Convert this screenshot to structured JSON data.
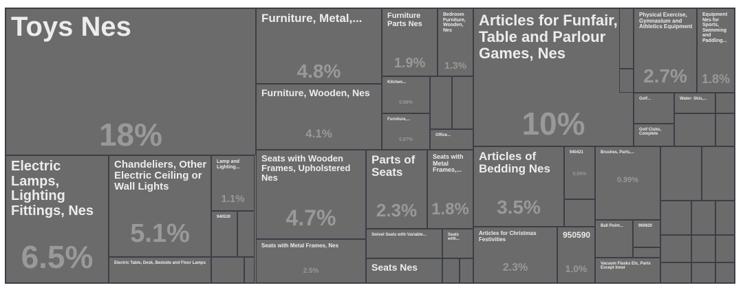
{
  "chart_data": {
    "type": "treemap",
    "colors": {
      "tile": "#6b6b6b",
      "border": "#3a3e46",
      "label": "#ececec",
      "value": "#999999"
    },
    "tiles": [
      {
        "label": "Toys Nes",
        "value": "18%"
      },
      {
        "label": "Electric Lamps, Lighting Fittings, Nes",
        "value": "6.5%"
      },
      {
        "label": "Chandeliers, Other Electric Ceiling or Wall Lights",
        "value": "5.1%"
      },
      {
        "label": "Lamp and Lighting...",
        "value": "1.1%"
      },
      {
        "label": "940530",
        "value": ""
      },
      {
        "label": "Electric Table, Desk, Bedside and Floor Lamps",
        "value": ""
      },
      {
        "label": "Furniture, Metal,...",
        "value": "4.8%"
      },
      {
        "label": "Furniture Parts Nes",
        "value": "1.9%"
      },
      {
        "label": "Bedroom Furniture, Wooden, Nes",
        "value": "1.3%"
      },
      {
        "label": "Furniture, Wooden, Nes",
        "value": "4.1%"
      },
      {
        "label": "Kitchen...",
        "value": "0.88%"
      },
      {
        "label": "Furniture,...",
        "value": "0.87%"
      },
      {
        "label": "Office...",
        "value": ""
      },
      {
        "label": "Seats with Wooden Frames, Upholstered Nes",
        "value": "4.7%"
      },
      {
        "label": "Seats with Metal Frames, Nes",
        "value": "2.5%"
      },
      {
        "label": "Parts of Seats",
        "value": "2.3%"
      },
      {
        "label": "Seats with Metal Frames,...",
        "value": "1.8%"
      },
      {
        "label": "Swivel Seats with Variable...",
        "value": ""
      },
      {
        "label": "Seats with...",
        "value": ""
      },
      {
        "label": "Seats Nes",
        "value": ""
      },
      {
        "label": "Articles for Funfair, Table and Parlour Games, Nes",
        "value": "10%"
      },
      {
        "label": "Physical Exercise, Gymnasium and Athletics Equipment",
        "value": "2.7%"
      },
      {
        "label": "Equipment Nes for Sports, Swimming and Paddling...",
        "value": "1.8%"
      },
      {
        "label": "Golf...",
        "value": ""
      },
      {
        "label": "Water- Skis,...",
        "value": ""
      },
      {
        "label": "Golf Clubs, Complete",
        "value": ""
      },
      {
        "label": "Articles of Bedding Nes",
        "value": "3.5%"
      },
      {
        "label": "940421",
        "value": "0.55%"
      },
      {
        "label": "Articles for Christmas Festivities",
        "value": "2.3%"
      },
      {
        "label": "950590",
        "value": "1.0%"
      },
      {
        "label": "Brushes, Parts,...",
        "value": "0.99%"
      },
      {
        "label": "Ball Point...",
        "value": ""
      },
      {
        "label": "960820",
        "value": ""
      },
      {
        "label": "Vacuum Flasks Etc, Parts Except Inner",
        "value": ""
      }
    ]
  }
}
